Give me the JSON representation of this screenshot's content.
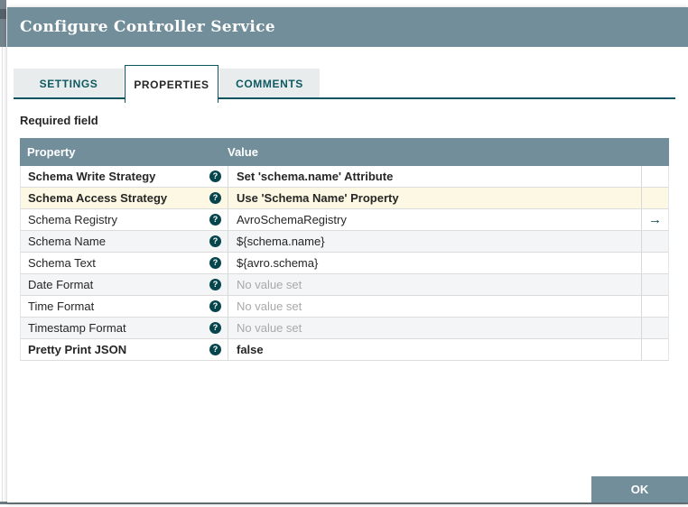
{
  "dialog": {
    "title": "Configure Controller Service"
  },
  "tabs": {
    "items": [
      {
        "label": "SETTINGS",
        "active": false
      },
      {
        "label": "PROPERTIES",
        "active": true
      },
      {
        "label": "COMMENTS",
        "active": false
      }
    ]
  },
  "properties_panel": {
    "required_field_label": "Required field"
  },
  "table": {
    "columns": [
      "Property",
      "Value"
    ],
    "help_icon": "?",
    "goto_icon": "→",
    "rows": [
      {
        "name": "Schema Write Strategy",
        "value": "Set 'schema.name' Attribute",
        "bold": true,
        "highlighted": false,
        "no_value": false,
        "goto": false
      },
      {
        "name": "Schema Access Strategy",
        "value": "Use 'Schema Name' Property",
        "bold": true,
        "highlighted": true,
        "no_value": false,
        "goto": false
      },
      {
        "name": "Schema Registry",
        "value": "AvroSchemaRegistry",
        "bold": false,
        "highlighted": false,
        "no_value": false,
        "goto": true
      },
      {
        "name": "Schema Name",
        "value": "${schema.name}",
        "bold": false,
        "highlighted": false,
        "no_value": false,
        "goto": false
      },
      {
        "name": "Schema Text",
        "value": "${avro.schema}",
        "bold": false,
        "highlighted": false,
        "no_value": false,
        "goto": false
      },
      {
        "name": "Date Format",
        "value": "No value set",
        "bold": false,
        "highlighted": false,
        "no_value": true,
        "goto": false
      },
      {
        "name": "Time Format",
        "value": "No value set",
        "bold": false,
        "highlighted": false,
        "no_value": true,
        "goto": false
      },
      {
        "name": "Timestamp Format",
        "value": "No value set",
        "bold": false,
        "highlighted": false,
        "no_value": true,
        "goto": false
      },
      {
        "name": "Pretty Print JSON",
        "value": "false",
        "bold": true,
        "highlighted": false,
        "no_value": false,
        "goto": false
      }
    ]
  },
  "footer": {
    "ok_label": "OK"
  },
  "colors": {
    "header_bg": "#728e9b",
    "accent_teal": "#0b5560",
    "help_icon_bg": "#07454d",
    "highlight_row_bg": "#fdf8e3",
    "alt_row_bg": "#f4f5f6",
    "no_value_text": "#a9a9a9",
    "tab_inactive_bg": "#e9eced",
    "tab_inactive_text": "#0e5a62"
  }
}
